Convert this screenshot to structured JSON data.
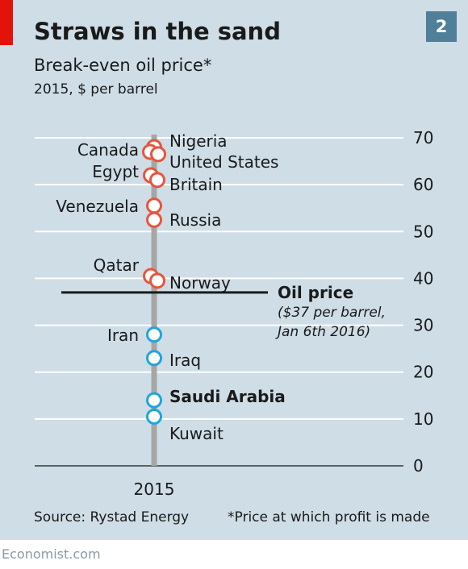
{
  "header": {
    "title": "Straws in the sand",
    "subtitle": "Break-even oil price*",
    "units": "2015, $ per barrel",
    "chart_number": "2"
  },
  "footer": {
    "source": "Source: Rystad Energy",
    "footnote": "*Price at which profit is made",
    "brand": "Economist.com"
  },
  "colors": {
    "background": "#cedde6",
    "above_oil_price": "#e8553d",
    "below_oil_price": "#1fa6d9",
    "reference_line": "#1a1a1a",
    "stem": "#a6a6a6",
    "brand_red": "#e3120b"
  },
  "chart_data": {
    "type": "scatter",
    "x": [
      "2015"
    ],
    "ylim": [
      0,
      70
    ],
    "yticks": [
      0,
      10,
      20,
      30,
      40,
      50,
      60,
      70
    ],
    "grid": true,
    "points": [
      {
        "label": "Nigeria",
        "value": 68,
        "bold": false,
        "group": "above"
      },
      {
        "label": "Canada",
        "value": 67,
        "bold": false,
        "group": "above"
      },
      {
        "label": "United States",
        "value": 66.5,
        "bold": false,
        "group": "above"
      },
      {
        "label": "Egypt",
        "value": 62,
        "bold": false,
        "group": "above"
      },
      {
        "label": "Britain",
        "value": 61,
        "bold": false,
        "group": "above"
      },
      {
        "label": "Venezuela",
        "value": 55.5,
        "bold": false,
        "group": "above"
      },
      {
        "label": "Russia",
        "value": 52.5,
        "bold": false,
        "group": "above"
      },
      {
        "label": "Qatar",
        "value": 40.5,
        "bold": false,
        "group": "above"
      },
      {
        "label": "Norway",
        "value": 39.5,
        "bold": false,
        "group": "above"
      },
      {
        "label": "Iran",
        "value": 28,
        "bold": false,
        "group": "below"
      },
      {
        "label": "Iraq",
        "value": 23,
        "bold": false,
        "group": "below"
      },
      {
        "label": "Saudi Arabia",
        "value": 14,
        "bold": true,
        "group": "below"
      },
      {
        "label": "Kuwait",
        "value": 10.5,
        "bold": false,
        "group": "below"
      }
    ],
    "reference_line": {
      "value": 37,
      "label": "Oil price",
      "note": [
        "($37 per barrel,",
        "Jan 6th 2016)"
      ]
    }
  }
}
